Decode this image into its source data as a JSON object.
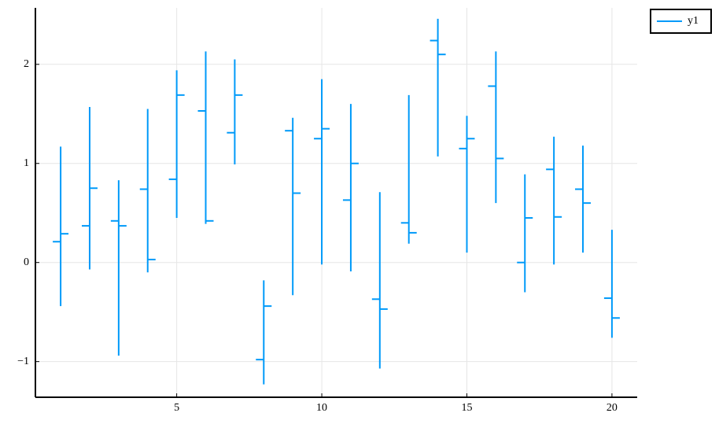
{
  "chart_data": {
    "type": "ohlc",
    "series": [
      {
        "name": "y1",
        "color": "#009af9",
        "x": [
          1,
          2,
          3,
          4,
          5,
          6,
          7,
          8,
          9,
          10,
          11,
          12,
          13,
          14,
          15,
          16,
          17,
          18,
          19,
          20
        ],
        "open": [
          0.21,
          0.37,
          0.42,
          0.74,
          0.84,
          1.53,
          1.31,
          -0.98,
          1.33,
          1.25,
          0.63,
          -0.37,
          0.4,
          2.24,
          1.15,
          1.78,
          0,
          0.94,
          0.74,
          -0.36
        ],
        "high": [
          1.17,
          1.57,
          0.83,
          1.55,
          1.94,
          2.13,
          2.05,
          -0.18,
          1.46,
          1.85,
          1.6,
          0.71,
          1.69,
          2.46,
          1.48,
          2.13,
          0.89,
          1.27,
          1.18,
          0.33
        ],
        "low": [
          -0.44,
          -0.07,
          -0.94,
          -0.1,
          0.45,
          0.39,
          0.99,
          -1.23,
          -0.33,
          -0.02,
          -0.09,
          -1.07,
          0.19,
          1.07,
          0.1,
          0.6,
          -0.3,
          -0.02,
          0.1,
          -0.76
        ],
        "close": [
          0.29,
          0.75,
          0.37,
          0.03,
          1.69,
          0.42,
          1.69,
          -0.44,
          0.7,
          1.35,
          1.0,
          -0.47,
          0.3,
          2.1,
          1.25,
          1.05,
          0.45,
          0.46,
          0.6,
          -0.56
        ]
      }
    ],
    "xlim": [
      0.13,
      20.87
    ],
    "ylim": [
      -1.36,
      2.57
    ],
    "xticks": [
      5,
      10,
      15,
      20
    ],
    "yticks": [
      {
        "value": -1,
        "label": "−1"
      },
      0,
      1,
      2
    ],
    "grid": true,
    "legend": "top-right"
  }
}
